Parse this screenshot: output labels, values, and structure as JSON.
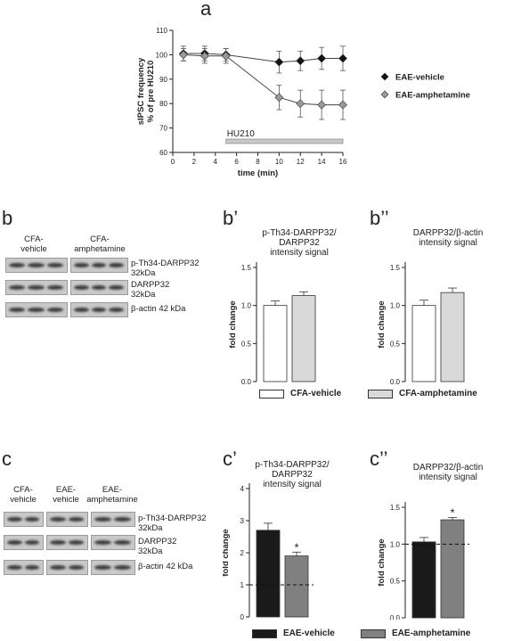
{
  "panels": {
    "a": "a",
    "b": "b",
    "b1": "b’",
    "b2": "b’’",
    "c": "c",
    "c1": "c’",
    "c2": "c’’"
  },
  "colors": {
    "white_bar": "#ffffff",
    "light_bar": "#d9d9d9",
    "black_bar": "#1a1a1a",
    "grey_bar": "#808080",
    "hu210_bar": "#c8c8c8",
    "vehicle_marker": "#111111",
    "amph_marker": "#999999"
  },
  "chart_data": [
    {
      "id": "a",
      "type": "line",
      "ylabel_line1": "sIPSC frequency",
      "ylabel_line2": "% of pre HU210",
      "xlabel": "time (min)",
      "xlim": [
        0,
        16
      ],
      "ylim": [
        60,
        110
      ],
      "xticks": [
        0,
        2,
        4,
        6,
        8,
        10,
        12,
        14,
        16
      ],
      "yticks": [
        60,
        70,
        80,
        90,
        100,
        110
      ],
      "annotation": "HU210",
      "annotation_range": [
        5,
        16
      ],
      "legend": "right",
      "series": [
        {
          "name": "EAE-vehicle",
          "x": [
            1,
            3,
            5,
            10,
            12,
            14,
            16
          ],
          "y": [
            100.5,
            100.5,
            100,
            97,
            97.5,
            98.5,
            98.5
          ],
          "err": [
            3,
            3,
            2.5,
            4.5,
            4,
            4.5,
            5
          ],
          "marker": "diamond",
          "color": "#111111"
        },
        {
          "name": "EAE-amphetamine",
          "x": [
            1,
            3,
            5,
            10,
            12,
            14,
            16
          ],
          "y": [
            100,
            99.5,
            99.5,
            82.5,
            80,
            79.5,
            79.5
          ],
          "err": [
            2.5,
            3,
            3,
            5,
            5.5,
            6,
            6
          ],
          "marker": "diamond",
          "color": "#999999"
        }
      ]
    },
    {
      "id": "b1",
      "type": "bar",
      "title": [
        "p-Th34-DARPP32/",
        "DARPP32",
        "intensity signal"
      ],
      "ylabel": "fold change",
      "ylim": [
        0,
        1.5
      ],
      "yticks": [
        0.0,
        0.5,
        1.0,
        1.5
      ],
      "categories": [
        "CFA-vehicle",
        "CFA-amphetamine"
      ],
      "values": [
        1.0,
        1.13
      ],
      "err": [
        0.06,
        0.05
      ],
      "colors": [
        "#ffffff",
        "#d9d9d9"
      ]
    },
    {
      "id": "b2",
      "type": "bar",
      "title": [
        "DARPP32/β-actin",
        "intensity signal"
      ],
      "ylabel": "fold change",
      "ylim": [
        0,
        1.5
      ],
      "yticks": [
        0.0,
        0.5,
        1.0,
        1.5
      ],
      "categories": [
        "CFA-vehicle",
        "CFA-amphetamine"
      ],
      "values": [
        1.0,
        1.17
      ],
      "err": [
        0.07,
        0.06
      ],
      "colors": [
        "#ffffff",
        "#d9d9d9"
      ]
    },
    {
      "id": "c1",
      "type": "bar",
      "title": [
        "p-Th34-DARPP32/",
        "DARPP32",
        "intensity signal"
      ],
      "ylabel": "fold change",
      "ylim": [
        0,
        4
      ],
      "yticks": [
        0,
        1,
        2,
        3,
        4
      ],
      "categories": [
        "EAE-vehicle",
        "EAE-amphetamine"
      ],
      "values": [
        2.7,
        1.9
      ],
      "err": [
        0.22,
        0.12
      ],
      "colors": [
        "#1a1a1a",
        "#808080"
      ],
      "star": "*",
      "baseline": 1
    },
    {
      "id": "c2",
      "type": "bar",
      "title": [
        "DARPP32/β-actin",
        "intensity signal"
      ],
      "ylabel": "fold change",
      "ylim": [
        0,
        1.5
      ],
      "yticks": [
        0.0,
        0.5,
        1.0,
        1.5
      ],
      "categories": [
        "EAE-vehicle",
        "EAE-amphetamine"
      ],
      "values": [
        1.03,
        1.33
      ],
      "err": [
        0.06,
        0.03
      ],
      "colors": [
        "#1a1a1a",
        "#808080"
      ],
      "star": "*",
      "baseline": 1
    }
  ],
  "blot_b": {
    "groups": [
      "CFA-\nvehicle",
      "CFA-\namphetamine"
    ],
    "rows": [
      "p-Th34-DARPP32\n32kDa",
      "DARPP32\n32kDa",
      "β-actin 42 kDa"
    ]
  },
  "blot_c": {
    "groups": [
      "CFA-\nvehicle",
      "EAE-\nvehicle",
      "EAE-\namphetamine"
    ],
    "rows": [
      "p-Th34-DARPP32\n32kDa",
      "DARPP32\n32kDa",
      "β-actin 42 kDa"
    ]
  },
  "legend_b": [
    "CFA-vehicle",
    "CFA-amphetamine"
  ],
  "legend_c": [
    "EAE-vehicle",
    "EAE-amphetamine"
  ]
}
